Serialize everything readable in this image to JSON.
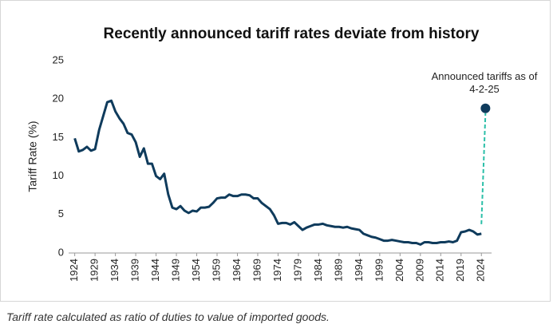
{
  "chart_data": {
    "type": "line",
    "title": "Recently announced tariff rates deviate from history",
    "y_label": "Tariff Rate (%)",
    "annotation": "Announced tariffs as of 4-2-25",
    "caption": "Tariff rate calculated as ratio of duties to value of imported goods.",
    "xlim": [
      1922.5,
      2026.5
    ],
    "xticks": [
      1924,
      1929,
      1934,
      1939,
      1944,
      1949,
      1954,
      1959,
      1964,
      1969,
      1974,
      1979,
      1984,
      1989,
      1994,
      1999,
      2004,
      2009,
      2014,
      2019,
      2024
    ],
    "ylim": [
      0,
      25
    ],
    "yticks": [
      0,
      5,
      10,
      15,
      20,
      25
    ],
    "grid": false,
    "series": [
      {
        "color": "#0f3b5c",
        "x": [
          1924,
          1925,
          1926,
          1927,
          1928,
          1929,
          1930,
          1931,
          1932,
          1933,
          1934,
          1935,
          1936,
          1937,
          1938,
          1939,
          1940,
          1941,
          1942,
          1943,
          1944,
          1945,
          1946,
          1947,
          1948,
          1949,
          1950,
          1951,
          1952,
          1953,
          1954,
          1955,
          1956,
          1957,
          1958,
          1959,
          1960,
          1961,
          1962,
          1963,
          1964,
          1965,
          1966,
          1967,
          1968,
          1969,
          1970,
          1971,
          1972,
          1973,
          1974,
          1975,
          1976,
          1977,
          1978,
          1979,
          1980,
          1981,
          1982,
          1983,
          1984,
          1985,
          1986,
          1987,
          1988,
          1989,
          1990,
          1991,
          1992,
          1993,
          1994,
          1995,
          1996,
          1997,
          1998,
          1999,
          2000,
          2001,
          2002,
          2003,
          2004,
          2005,
          2006,
          2007,
          2008,
          2009,
          2010,
          2011,
          2012,
          2013,
          2014,
          2015,
          2016,
          2017,
          2018,
          2019,
          2020,
          2021,
          2022,
          2023,
          2024
        ],
        "values": [
          14.9,
          13.2,
          13.4,
          13.8,
          13.3,
          13.5,
          16.0,
          17.8,
          19.6,
          19.8,
          18.4,
          17.5,
          16.8,
          15.6,
          15.4,
          14.4,
          12.5,
          13.6,
          11.6,
          11.6,
          10.0,
          9.6,
          10.3,
          7.6,
          5.9,
          5.7,
          6.1,
          5.5,
          5.2,
          5.5,
          5.4,
          5.9,
          5.9,
          6.0,
          6.5,
          7.1,
          7.2,
          7.2,
          7.6,
          7.4,
          7.4,
          7.6,
          7.6,
          7.5,
          7.1,
          7.1,
          6.5,
          6.1,
          5.7,
          4.9,
          3.8,
          3.9,
          3.9,
          3.7,
          4.0,
          3.5,
          3.0,
          3.3,
          3.5,
          3.7,
          3.7,
          3.8,
          3.6,
          3.5,
          3.4,
          3.4,
          3.3,
          3.4,
          3.2,
          3.1,
          3.0,
          2.5,
          2.3,
          2.1,
          2.0,
          1.8,
          1.6,
          1.6,
          1.7,
          1.6,
          1.5,
          1.4,
          1.4,
          1.3,
          1.3,
          1.1,
          1.4,
          1.4,
          1.3,
          1.3,
          1.4,
          1.4,
          1.5,
          1.4,
          1.6,
          2.7,
          2.8,
          3.0,
          2.8,
          2.4,
          2.5
        ]
      },
      {
        "name": "Announced tariffs as of 4-2-25",
        "color": "#0f3b5c",
        "connector_color": "#2bbfa8",
        "x": [
          2025
        ],
        "values": [
          18.8
        ]
      }
    ]
  }
}
